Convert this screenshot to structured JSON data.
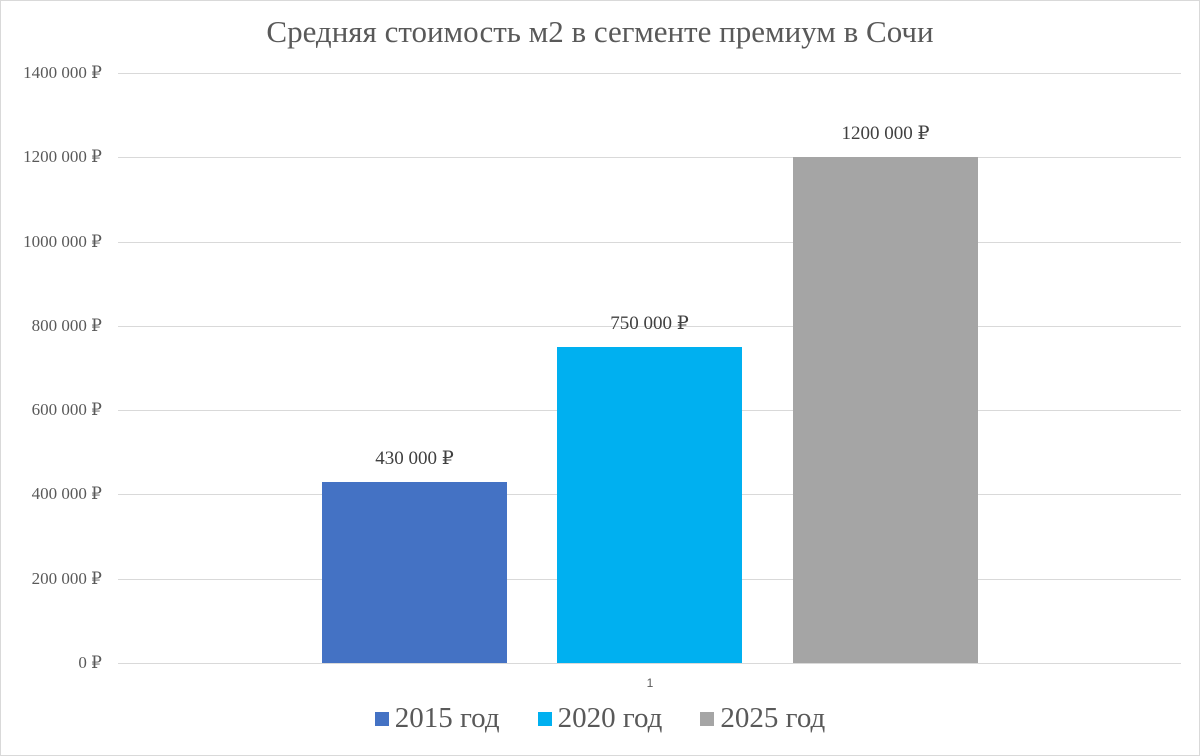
{
  "chart_data": {
    "type": "bar",
    "title": "Средняя стоимость м2 в сегменте премиум в Сочи",
    "xlabel": "",
    "ylabel": "",
    "categories": [
      "1"
    ],
    "series": [
      {
        "name": "2015 год",
        "values": [
          430000
        ],
        "color": "#4472c4",
        "label": "430 000 ₽"
      },
      {
        "name": "2020 год",
        "values": [
          750000
        ],
        "color": "#00b0f0",
        "label": "750 000 ₽"
      },
      {
        "name": "2025 год",
        "values": [
          1200000
        ],
        "color": "#a5a5a5",
        "label": "1200 000 ₽"
      }
    ],
    "ylim": [
      0,
      1400000
    ],
    "yticks": [
      0,
      200000,
      400000,
      600000,
      800000,
      1000000,
      1200000,
      1400000
    ],
    "ytick_labels": [
      "0 ₽",
      "200 000 ₽",
      "400 000 ₽",
      "600 000 ₽",
      "800 000 ₽",
      "1000 000 ₽",
      "1200 000 ₽",
      "1400 000 ₽"
    ],
    "grid": true,
    "legend_position": "bottom"
  },
  "title": "Средняя стоимость м2 в сегменте премиум в Сочи",
  "x_tick": "1",
  "legend": [
    {
      "label": "2015 год",
      "color": "#4472c4"
    },
    {
      "label": "2020 год",
      "color": "#00b0f0"
    },
    {
      "label": "2025 год",
      "color": "#a5a5a5"
    }
  ]
}
